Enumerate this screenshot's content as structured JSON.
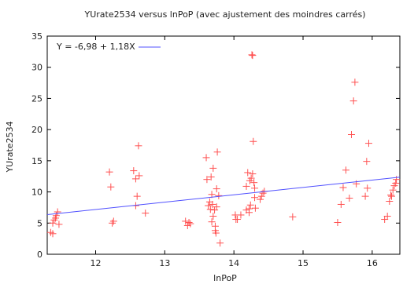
{
  "chart_data": {
    "type": "scatter",
    "title": "YUrate2534 versus lnPoP (avec ajustement des moindres carrés)",
    "xlabel": "lnPoP",
    "ylabel": "YUrate2534",
    "xlim": [
      11.3,
      16.4
    ],
    "ylim": [
      0,
      35
    ],
    "xticks": [
      12,
      13,
      14,
      15,
      16
    ],
    "yticks": [
      0,
      5,
      10,
      15,
      20,
      25,
      30,
      35
    ],
    "grid": false,
    "legend_position": "top-left",
    "colors": {
      "points": "#ff5050",
      "fit_line": "#5050ff",
      "axis": "#000000"
    },
    "series": [
      {
        "marker": "plus",
        "x": [
          11.35,
          11.38,
          11.4,
          11.43,
          11.45,
          11.47,
          11.38,
          11.42,
          12.2,
          12.22,
          12.24,
          12.26,
          12.55,
          12.58,
          12.6,
          12.62,
          12.63,
          12.58,
          12.72,
          13.3,
          13.33,
          13.35,
          13.37,
          13.6,
          13.61,
          13.63,
          13.65,
          13.66,
          13.67,
          13.68,
          13.69,
          13.7,
          13.72,
          13.73,
          13.74,
          13.75,
          13.76,
          13.78,
          13.8,
          13.68,
          13.7,
          13.73,
          13.75,
          14.02,
          14.03,
          14.05,
          14.1,
          14.18,
          14.2,
          14.22,
          14.23,
          14.24,
          14.25,
          14.26,
          14.27,
          14.28,
          14.29,
          14.3,
          14.31,
          14.18,
          14.22,
          14.27,
          14.3,
          14.38,
          14.4,
          14.42,
          14.44,
          14.85,
          15.5,
          15.55,
          15.58,
          15.62,
          15.67,
          15.7,
          15.73,
          15.75,
          15.77,
          15.9,
          15.92,
          15.95,
          15.93,
          16.18,
          16.22,
          16.25,
          16.28,
          16.3,
          16.32,
          16.34,
          16.35,
          16.27
        ],
        "y": [
          3.5,
          3.3,
          5.5,
          6.2,
          6.8,
          4.8,
          5.0,
          5.8,
          13.2,
          10.8,
          5.0,
          5.3,
          13.4,
          12.1,
          9.3,
          17.4,
          12.6,
          7.8,
          6.6,
          5.3,
          4.6,
          5.1,
          4.9,
          15.5,
          12.0,
          7.8,
          8.4,
          7.2,
          12.4,
          9.6,
          8.0,
          13.8,
          7.1,
          4.5,
          3.4,
          10.5,
          16.4,
          9.4,
          1.8,
          5.2,
          6.1,
          3.8,
          7.6,
          6.3,
          5.6,
          5.6,
          6.3,
          10.9,
          13.1,
          7.3,
          11.8,
          7.9,
          12.2,
          32.0,
          31.9,
          18.1,
          11.5,
          9.1,
          7.4,
          7.1,
          6.7,
          12.9,
          10.6,
          8.8,
          9.3,
          9.8,
          10.1,
          6.0,
          5.1,
          8.0,
          10.7,
          13.5,
          9.0,
          19.2,
          24.6,
          27.6,
          11.3,
          9.3,
          14.9,
          17.8,
          10.6,
          5.6,
          6.1,
          8.5,
          9.3,
          10.3,
          11.0,
          11.4,
          12.0,
          9.5
        ]
      }
    ],
    "fit_line": {
      "equation": "Y = -6,98 + 1,18X",
      "intercept": -6.98,
      "slope": 1.18
    }
  }
}
